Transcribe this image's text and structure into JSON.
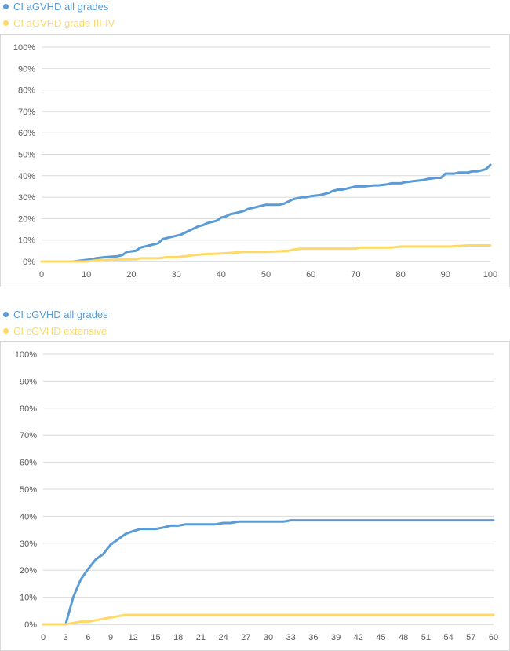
{
  "chart_data": [
    {
      "type": "line",
      "title": "",
      "xlabel": "",
      "ylabel": "",
      "xlim": [
        0,
        100
      ],
      "ylim": [
        0,
        100
      ],
      "x_ticks": [
        0,
        10,
        20,
        30,
        40,
        50,
        60,
        70,
        80,
        90,
        100
      ],
      "y_ticks": [
        0,
        10,
        20,
        30,
        40,
        50,
        60,
        70,
        80,
        90,
        100
      ],
      "y_tick_labels": [
        "0%",
        "10%",
        "20%",
        "30%",
        "40%",
        "50%",
        "60%",
        "70%",
        "80%",
        "90%",
        "100%"
      ],
      "grid": true,
      "legend_position": "top-left",
      "series": [
        {
          "name": "CI aGVHD all grades",
          "color": "#5b9bd5",
          "x": [
            0,
            7,
            9,
            11,
            12,
            14,
            17,
            18,
            19,
            21,
            22,
            23,
            24,
            26,
            27,
            28,
            29,
            30,
            31,
            32,
            33,
            34,
            35,
            36,
            37,
            38,
            39,
            40,
            41,
            42,
            43,
            44,
            45,
            46,
            47,
            48,
            49,
            50,
            51,
            53,
            54,
            55,
            56,
            57,
            58,
            59,
            60,
            62,
            63,
            64,
            65,
            66,
            67,
            68,
            69,
            70,
            72,
            74,
            75,
            77,
            78,
            80,
            81,
            83,
            85,
            86,
            88,
            89,
            90,
            92,
            93,
            95,
            96,
            97,
            98,
            99,
            100
          ],
          "values": [
            0,
            0,
            0.5,
            1,
            1.5,
            2,
            2.5,
            3,
            4.5,
            5,
            6.5,
            7,
            7.5,
            8.5,
            10.5,
            11,
            11.5,
            12,
            12.5,
            13.5,
            14.5,
            15.5,
            16.5,
            17,
            18,
            18.5,
            19,
            20.5,
            21,
            22,
            22.5,
            23,
            23.5,
            24.5,
            25,
            25.5,
            26,
            26.5,
            26.5,
            26.5,
            27,
            28,
            29,
            29.5,
            30,
            30,
            30.5,
            31,
            31.5,
            32,
            33,
            33.5,
            33.5,
            34,
            34.5,
            35,
            35,
            35.5,
            35.5,
            36,
            36.5,
            36.5,
            37,
            37.5,
            38,
            38.5,
            39,
            39,
            41,
            41,
            41.5,
            41.5,
            42,
            42,
            42.5,
            43,
            45
          ]
        },
        {
          "name": "CI aGVHD grade III-IV",
          "color": "#ffd966",
          "x": [
            0,
            10,
            12,
            18,
            21,
            22,
            26,
            28,
            30,
            32,
            34,
            37,
            38,
            42,
            45,
            50,
            55,
            56,
            58,
            60,
            65,
            70,
            71,
            75,
            78,
            80,
            85,
            90,
            91,
            95,
            100
          ],
          "values": [
            0,
            0,
            0.5,
            1,
            1,
            1.5,
            1.5,
            2,
            2,
            2.5,
            3,
            3.5,
            3.5,
            4,
            4.5,
            4.5,
            5,
            5.5,
            6,
            6,
            6,
            6,
            6.5,
            6.5,
            6.5,
            7,
            7,
            7,
            7,
            7.5,
            7.5
          ]
        }
      ]
    },
    {
      "type": "line",
      "title": "",
      "xlabel": "",
      "ylabel": "",
      "xlim": [
        0,
        60
      ],
      "ylim": [
        0,
        100
      ],
      "x_ticks": [
        0,
        3,
        6,
        9,
        12,
        15,
        18,
        21,
        24,
        27,
        30,
        33,
        36,
        39,
        42,
        45,
        48,
        51,
        54,
        57,
        60
      ],
      "y_ticks": [
        0,
        10,
        20,
        30,
        40,
        50,
        60,
        70,
        80,
        90,
        100
      ],
      "y_tick_labels": [
        "0%",
        "10%",
        "20%",
        "30%",
        "40%",
        "50%",
        "60%",
        "70%",
        "80%",
        "90%",
        "100%"
      ],
      "grid": true,
      "legend_position": "top-left",
      "series": [
        {
          "name": "CI cGVHD all grades",
          "color": "#5b9bd5",
          "x": [
            0,
            3,
            4,
            5,
            6,
            7,
            8,
            9,
            10,
            11,
            12,
            13,
            14,
            15,
            16,
            17,
            18,
            19,
            20,
            21,
            22,
            23,
            24,
            25,
            26,
            27,
            28,
            29,
            30,
            31,
            32,
            33,
            36,
            40,
            45,
            50,
            55,
            60
          ],
          "values": [
            0,
            0,
            10,
            16.5,
            20.5,
            24,
            26,
            29.5,
            31.5,
            33.5,
            34.5,
            35.3,
            35.3,
            35.3,
            35.8,
            36.5,
            36.5,
            37,
            37,
            37,
            37,
            37,
            37.5,
            37.5,
            38,
            38,
            38,
            38,
            38,
            38,
            38,
            38.5,
            38.5,
            38.5,
            38.5,
            38.5,
            38.5,
            38.5
          ]
        },
        {
          "name": "CI cGVHD extensive",
          "color": "#ffd966",
          "x": [
            0,
            3,
            4,
            5,
            6,
            7,
            8,
            9,
            10,
            11,
            12,
            15,
            20,
            30,
            40,
            50,
            60
          ],
          "values": [
            0,
            0,
            0.5,
            1,
            1,
            1.5,
            2,
            2.5,
            3,
            3.5,
            3.5,
            3.5,
            3.5,
            3.5,
            3.5,
            3.5,
            3.5
          ]
        }
      ]
    }
  ]
}
